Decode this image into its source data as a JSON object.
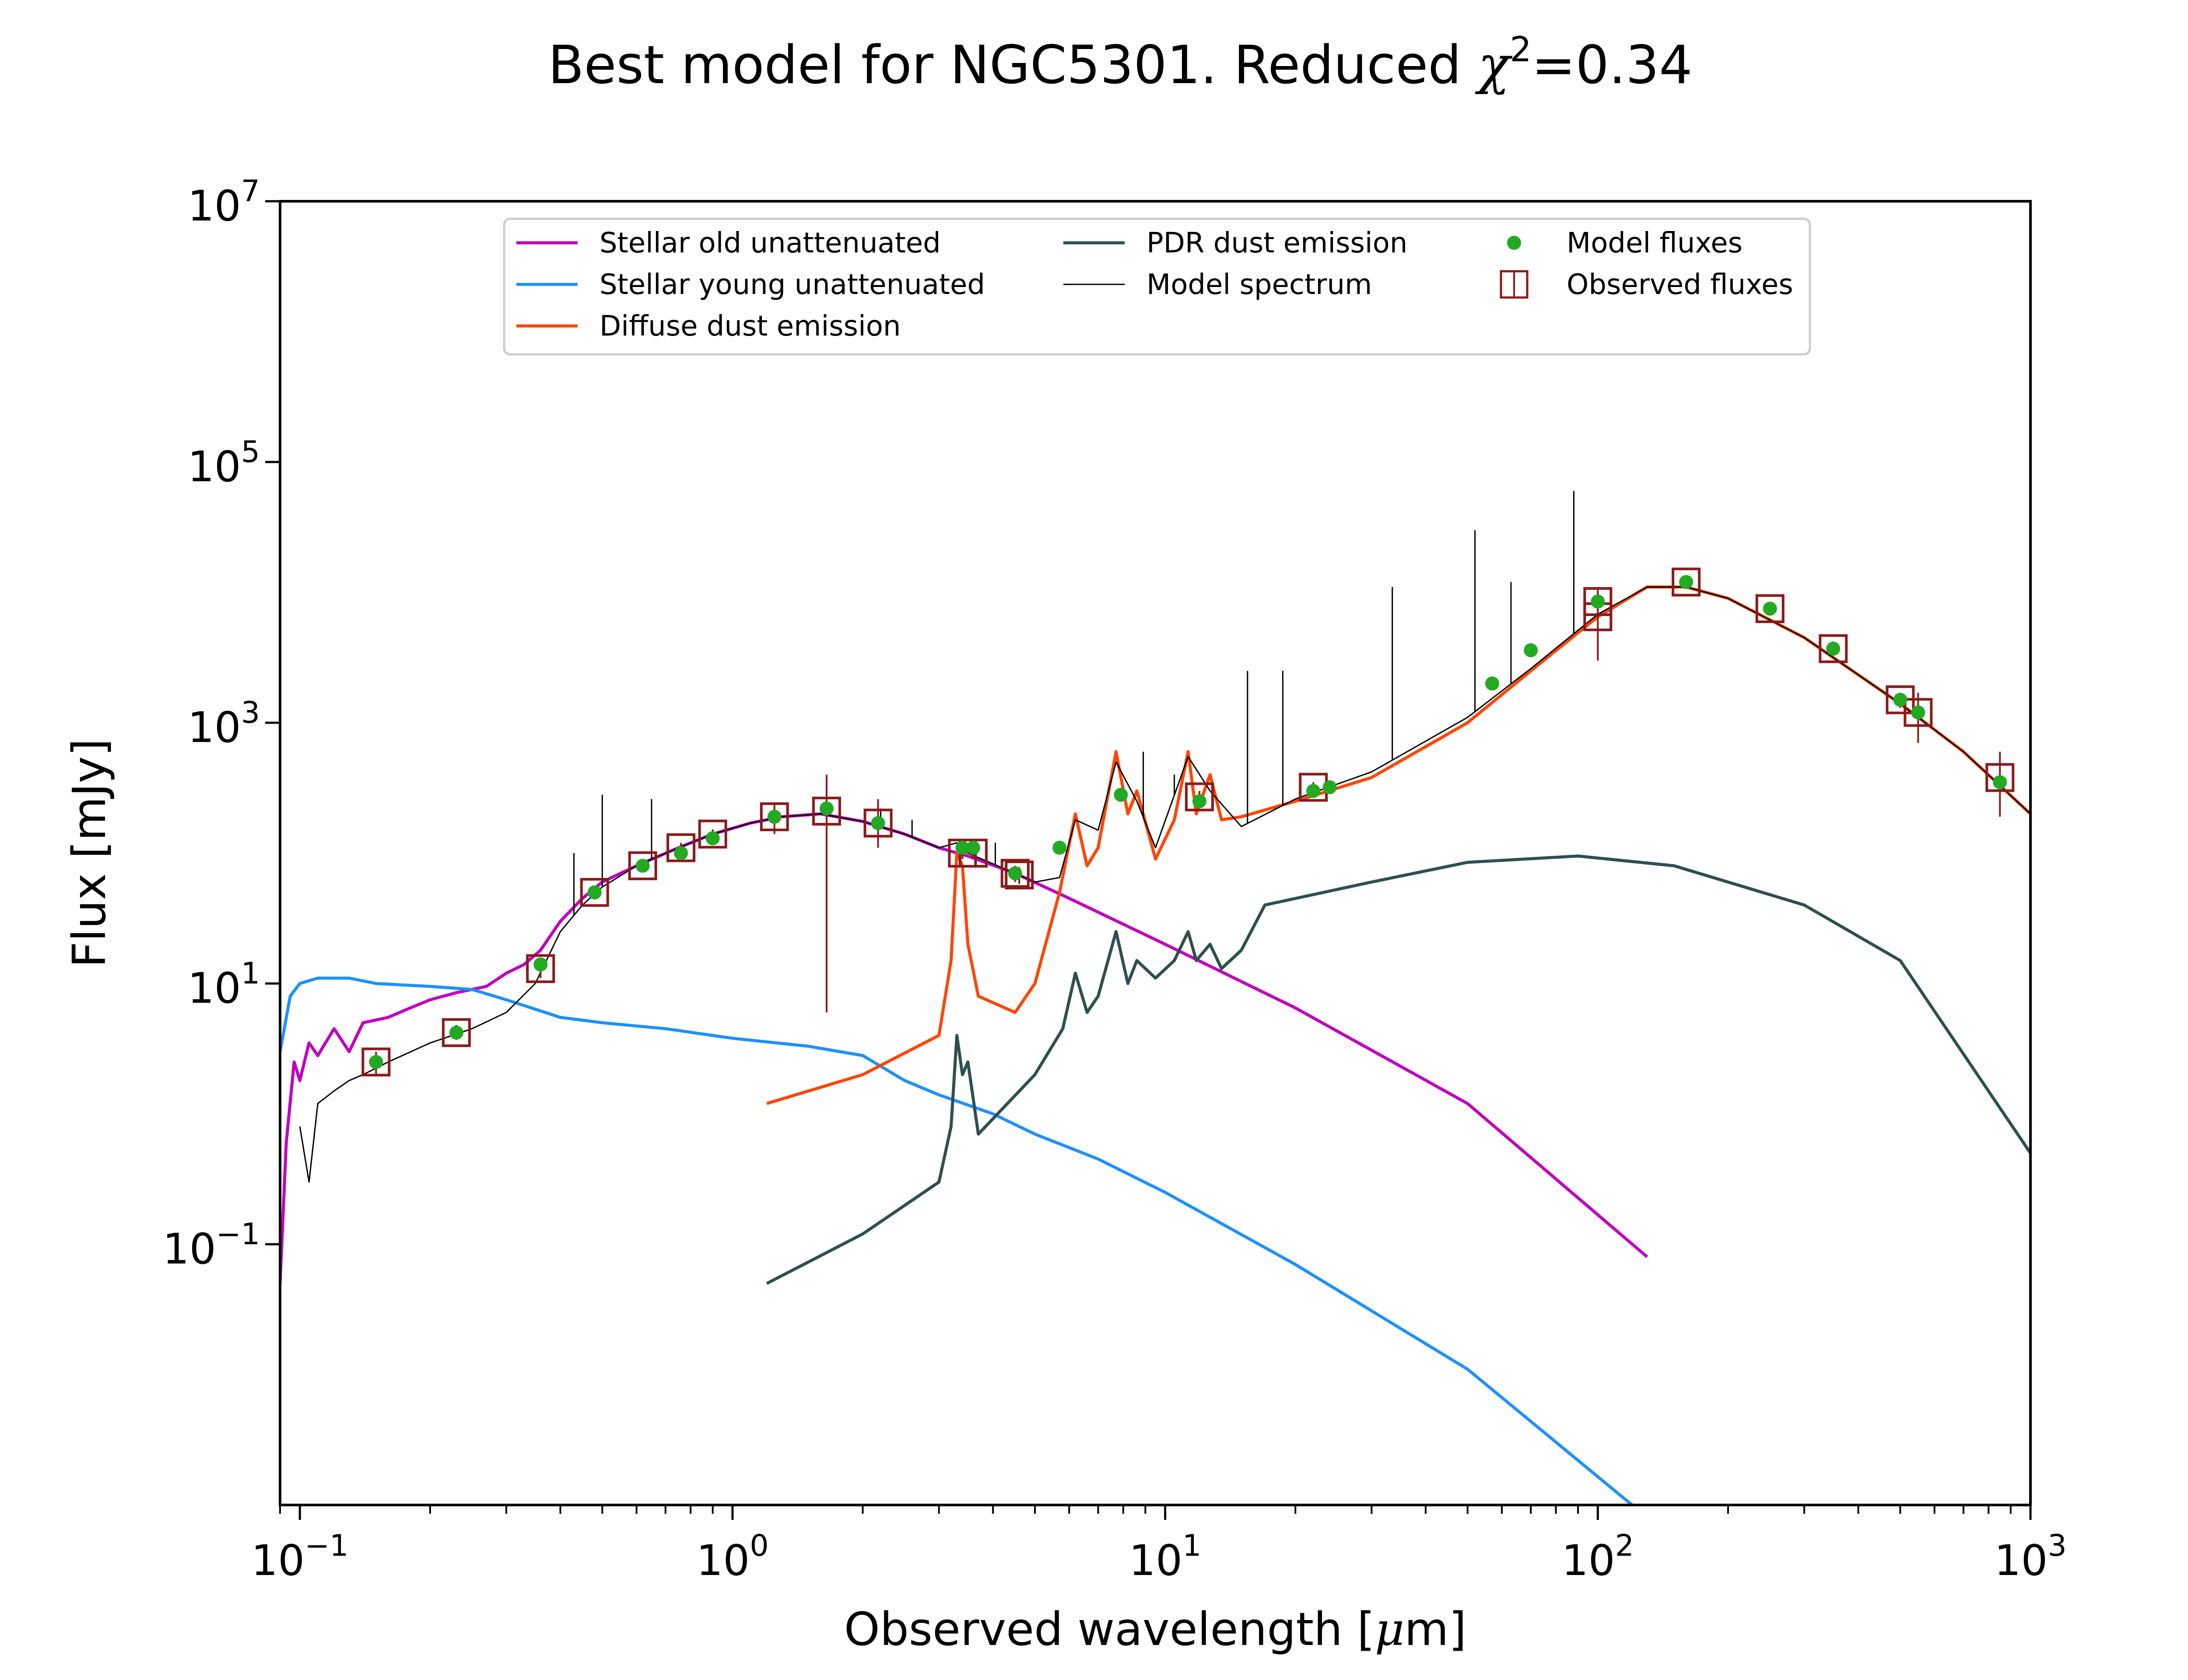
{
  "chart_data": {
    "type": "line",
    "title": "Best model for NGC5301. Reduced χ²=0.34",
    "title_prefix": "Best model for NGC5301. Reduced ",
    "title_symbol": "χ",
    "title_sup": "2",
    "title_suffix": "=0.34",
    "xlabel": "Observed wavelength [μm]",
    "xlabel_prefix": "Observed wavelength [",
    "xlabel_mu": "μ",
    "xlabel_suffix": "m]",
    "ylabel": "Flux [mJy]",
    "xscale": "log",
    "yscale": "log",
    "xlim": [
      0.09,
      1000
    ],
    "ylim": [
      0.001,
      10000000
    ],
    "grid": false,
    "legend_position": "top-center",
    "x_ticks": [
      {
        "value": 0.1,
        "base": "10",
        "exp": "−1"
      },
      {
        "value": 1,
        "base": "10",
        "exp": "0"
      },
      {
        "value": 10,
        "base": "10",
        "exp": "1"
      },
      {
        "value": 100,
        "base": "10",
        "exp": "2"
      },
      {
        "value": 1000,
        "base": "10",
        "exp": "3"
      }
    ],
    "y_ticks": [
      {
        "value": 0.1,
        "base": "10",
        "exp": "−1"
      },
      {
        "value": 10,
        "base": "10",
        "exp": "1"
      },
      {
        "value": 1000,
        "base": "10",
        "exp": "3"
      },
      {
        "value": 100000,
        "base": "10",
        "exp": "5"
      },
      {
        "value": 10000000,
        "base": "10",
        "exp": "7"
      }
    ],
    "series": [
      {
        "name": "Stellar old unattenuated",
        "color": "#bf00bf",
        "points": [
          [
            0.09,
            0.05
          ],
          [
            0.093,
            0.6
          ],
          [
            0.097,
            2.5
          ],
          [
            0.1,
            1.8
          ],
          [
            0.105,
            3.5
          ],
          [
            0.11,
            2.8
          ],
          [
            0.12,
            4.5
          ],
          [
            0.13,
            3.0
          ],
          [
            0.14,
            5.0
          ],
          [
            0.16,
            5.5
          ],
          [
            0.18,
            6.5
          ],
          [
            0.2,
            7.5
          ],
          [
            0.23,
            8.5
          ],
          [
            0.27,
            9.5
          ],
          [
            0.3,
            12
          ],
          [
            0.33,
            14
          ],
          [
            0.36,
            18
          ],
          [
            0.4,
            30
          ],
          [
            0.45,
            45
          ],
          [
            0.5,
            60
          ],
          [
            0.6,
            80
          ],
          [
            0.75,
            110
          ],
          [
            0.9,
            140
          ],
          [
            1.1,
            170
          ],
          [
            1.3,
            190
          ],
          [
            1.6,
            200
          ],
          [
            2.0,
            175
          ],
          [
            2.5,
            140
          ],
          [
            3.0,
            110
          ],
          [
            3.5,
            95
          ],
          [
            4.5,
            70
          ],
          [
            6.0,
            45
          ],
          [
            10.0,
            20
          ],
          [
            20.0,
            6.5
          ],
          [
            50.0,
            1.2
          ],
          [
            130.0,
            0.08
          ]
        ]
      },
      {
        "name": "Stellar young unattenuated",
        "color": "#1e90ff",
        "points": [
          [
            0.09,
            3
          ],
          [
            0.095,
            8
          ],
          [
            0.1,
            10
          ],
          [
            0.11,
            11
          ],
          [
            0.13,
            11
          ],
          [
            0.15,
            10
          ],
          [
            0.2,
            9.5
          ],
          [
            0.25,
            9
          ],
          [
            0.3,
            7.5
          ],
          [
            0.4,
            5.5
          ],
          [
            0.5,
            5
          ],
          [
            0.7,
            4.5
          ],
          [
            1.0,
            3.8
          ],
          [
            1.5,
            3.3
          ],
          [
            2.0,
            2.8
          ],
          [
            2.5,
            1.8
          ],
          [
            3.0,
            1.4
          ],
          [
            4.0,
            1.0
          ],
          [
            5.0,
            0.7
          ],
          [
            7.0,
            0.45
          ],
          [
            10.0,
            0.25
          ],
          [
            20.0,
            0.07
          ],
          [
            50.0,
            0.011
          ],
          [
            120.0,
            0.001
          ]
        ]
      },
      {
        "name": "Diffuse dust emission",
        "color": "#ff4500",
        "points": [
          [
            1.2,
            1.2
          ],
          [
            2.0,
            2.0
          ],
          [
            3.0,
            4.0
          ],
          [
            3.2,
            15
          ],
          [
            3.3,
            100
          ],
          [
            3.4,
            80
          ],
          [
            3.5,
            20
          ],
          [
            3.7,
            8
          ],
          [
            4.5,
            6
          ],
          [
            5.0,
            10
          ],
          [
            5.7,
            50
          ],
          [
            6.2,
            200
          ],
          [
            6.6,
            80
          ],
          [
            7.0,
            110
          ],
          [
            7.7,
            600
          ],
          [
            8.2,
            200
          ],
          [
            8.6,
            300
          ],
          [
            9.5,
            90
          ],
          [
            10.5,
            180
          ],
          [
            11.3,
            600
          ],
          [
            11.8,
            200
          ],
          [
            12.7,
            400
          ],
          [
            13.5,
            180
          ],
          [
            15,
            190
          ],
          [
            20,
            250
          ],
          [
            30,
            380
          ],
          [
            50,
            1000
          ],
          [
            70,
            2500
          ],
          [
            100,
            6500
          ],
          [
            130,
            11000
          ],
          [
            160,
            11000
          ],
          [
            200,
            9000
          ],
          [
            300,
            4500
          ],
          [
            500,
            1400
          ],
          [
            700,
            600
          ],
          [
            1000,
            200
          ]
        ]
      },
      {
        "name": "PDR dust emission",
        "color": "#2f4f4f",
        "points": [
          [
            1.2,
            0.05
          ],
          [
            2.0,
            0.12
          ],
          [
            3.0,
            0.3
          ],
          [
            3.2,
            0.8
          ],
          [
            3.3,
            4
          ],
          [
            3.4,
            2
          ],
          [
            3.5,
            2.5
          ],
          [
            3.7,
            0.7
          ],
          [
            5.0,
            2.0
          ],
          [
            5.8,
            4.5
          ],
          [
            6.2,
            12
          ],
          [
            6.6,
            6
          ],
          [
            7.0,
            8
          ],
          [
            7.7,
            25
          ],
          [
            8.2,
            10
          ],
          [
            8.6,
            15
          ],
          [
            9.5,
            11
          ],
          [
            10.5,
            15
          ],
          [
            11.3,
            25
          ],
          [
            11.8,
            15
          ],
          [
            12.7,
            20
          ],
          [
            13.5,
            13
          ],
          [
            15,
            18
          ],
          [
            17,
            40
          ],
          [
            30,
            60
          ],
          [
            50,
            85
          ],
          [
            90,
            95
          ],
          [
            150,
            80
          ],
          [
            300,
            40
          ],
          [
            500,
            15
          ],
          [
            1000,
            0.5
          ]
        ]
      },
      {
        "name": "Model spectrum",
        "color": "#000000",
        "points": [
          [
            0.1,
            0.8
          ],
          [
            0.105,
            0.3
          ],
          [
            0.11,
            1.2
          ],
          [
            0.12,
            1.5
          ],
          [
            0.13,
            1.8
          ],
          [
            0.14,
            2.0
          ],
          [
            0.16,
            2.5
          ],
          [
            0.2,
            3.5
          ],
          [
            0.25,
            4.5
          ],
          [
            0.3,
            6
          ],
          [
            0.35,
            10
          ],
          [
            0.4,
            25
          ],
          [
            0.45,
            40
          ],
          [
            0.5,
            55
          ],
          [
            0.6,
            80
          ],
          [
            0.75,
            110
          ],
          [
            0.9,
            140
          ],
          [
            1.1,
            170
          ],
          [
            1.3,
            190
          ],
          [
            1.6,
            200
          ],
          [
            2.0,
            175
          ],
          [
            2.5,
            140
          ],
          [
            3.0,
            110
          ],
          [
            3.3,
            120
          ],
          [
            3.5,
            100
          ],
          [
            4.5,
            70
          ],
          [
            5.0,
            60
          ],
          [
            5.7,
            65
          ],
          [
            6.2,
            180
          ],
          [
            7.0,
            150
          ],
          [
            7.7,
            500
          ],
          [
            8.6,
            250
          ],
          [
            9.5,
            110
          ],
          [
            11.3,
            550
          ],
          [
            12.7,
            300
          ],
          [
            15,
            160
          ],
          [
            20,
            260
          ],
          [
            30,
            420
          ],
          [
            50,
            1100
          ],
          [
            70,
            2600
          ],
          [
            100,
            6800
          ],
          [
            130,
            11000
          ],
          [
            160,
            11000
          ],
          [
            200,
            9000
          ],
          [
            300,
            4500
          ],
          [
            500,
            1400
          ],
          [
            700,
            600
          ],
          [
            1000,
            200
          ]
        ]
      }
    ],
    "emission_lines": [
      {
        "x": 0.37,
        "peak": 14
      },
      {
        "x": 0.43,
        "peak": 100
      },
      {
        "x": 0.5,
        "peak": 280
      },
      {
        "x": 0.65,
        "peak": 260
      },
      {
        "x": 2.2,
        "peak": 220
      },
      {
        "x": 2.6,
        "peak": 180
      },
      {
        "x": 4.05,
        "peak": 120
      },
      {
        "x": 8.9,
        "peak": 600
      },
      {
        "x": 10.5,
        "peak": 400
      },
      {
        "x": 15.5,
        "peak": 2500
      },
      {
        "x": 18.7,
        "peak": 2500
      },
      {
        "x": 33.5,
        "peak": 11000
      },
      {
        "x": 52,
        "peak": 30000
      },
      {
        "x": 63,
        "peak": 12000
      },
      {
        "x": 88,
        "peak": 60000
      }
    ],
    "model_fluxes": {
      "name": "Model fluxes",
      "color": "#22aa22",
      "x": [
        0.15,
        0.23,
        0.36,
        0.48,
        0.62,
        0.76,
        0.9,
        1.25,
        1.65,
        2.17,
        3.4,
        3.6,
        4.5,
        5.7,
        7.9,
        12,
        22,
        24,
        57,
        70,
        100,
        160,
        250,
        350,
        500,
        550,
        850
      ],
      "y": [
        2.5,
        4.2,
        14,
        50,
        80,
        100,
        130,
        190,
        220,
        170,
        110,
        110,
        70,
        110,
        280,
        250,
        300,
        320,
        2000,
        3600,
        8500,
        12000,
        7500,
        3700,
        1500,
        1200,
        350
      ]
    },
    "observed_fluxes": {
      "name": "Observed fluxes",
      "color": "#8b1a1a",
      "x": [
        0.15,
        0.23,
        0.36,
        0.48,
        0.62,
        0.76,
        0.9,
        1.25,
        1.65,
        2.17,
        3.4,
        3.6,
        4.5,
        4.6,
        12,
        22,
        100,
        100,
        160,
        250,
        350,
        500,
        550,
        850
      ],
      "y": [
        2.5,
        4.2,
        13,
        50,
        80,
        110,
        140,
        190,
        210,
        170,
        100,
        100,
        70,
        68,
        270,
        320,
        6500,
        8500,
        12000,
        7500,
        3700,
        1500,
        1200,
        380
      ],
      "err_low": [
        2.0,
        3.7,
        11,
        44,
        72,
        100,
        128,
        140,
        6,
        110,
        90,
        90,
        60,
        58,
        240,
        290,
        3000,
        7000,
        11000,
        7000,
        3300,
        1300,
        700,
        190
      ],
      "err_high": [
        3.0,
        4.8,
        15,
        56,
        88,
        120,
        152,
        240,
        400,
        260,
        110,
        110,
        80,
        78,
        300,
        350,
        11000,
        10000,
        13000,
        8000,
        4200,
        1700,
        1700,
        600
      ]
    }
  }
}
